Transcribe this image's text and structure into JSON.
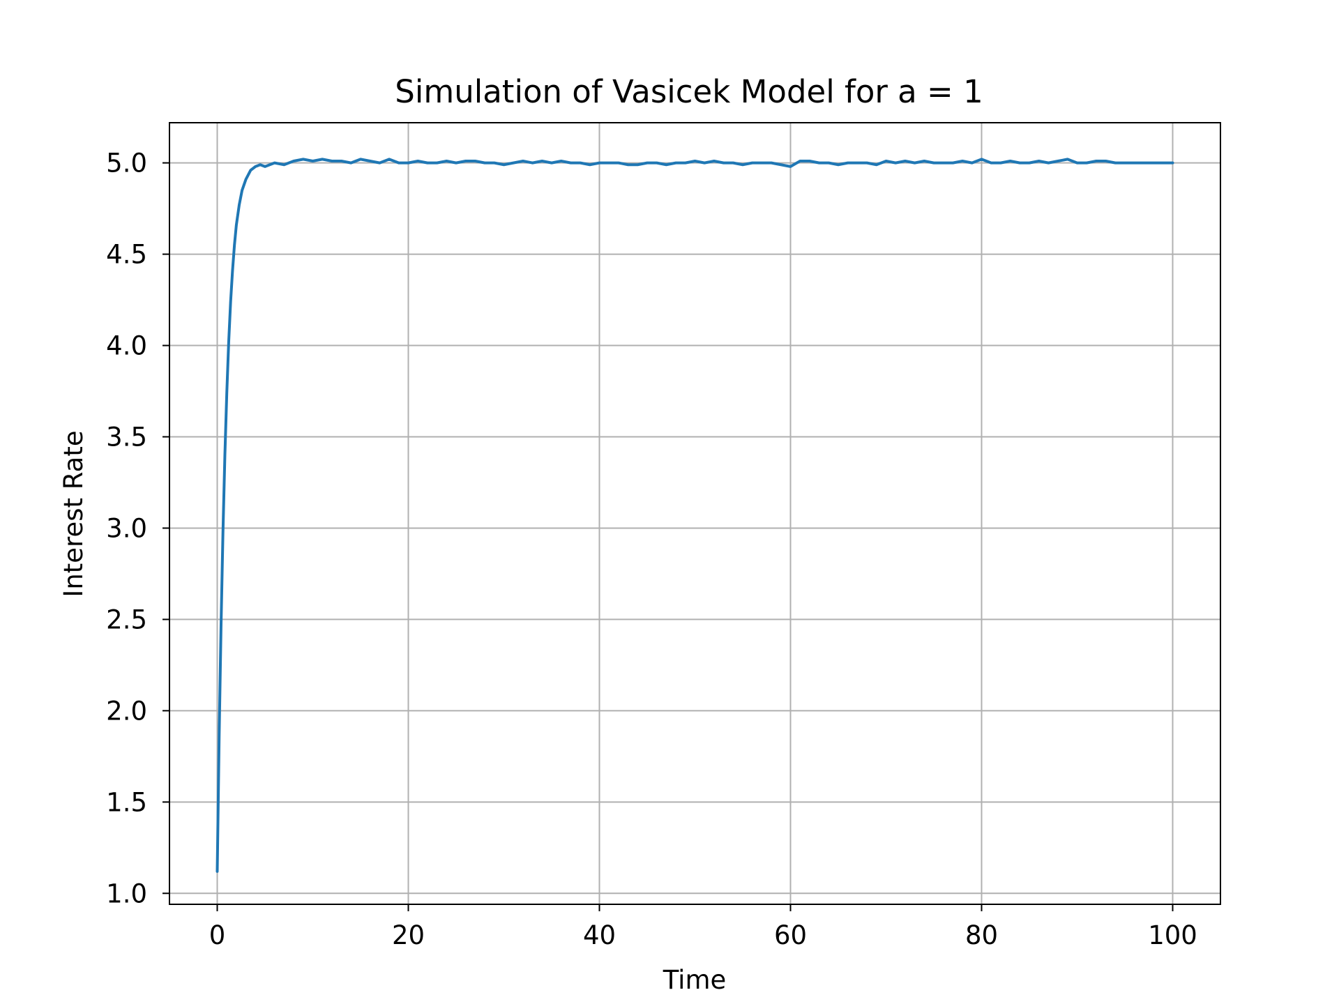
{
  "chart_data": {
    "type": "line",
    "title": "Simulation of Vasicek Model for a = 1",
    "xlabel": "Time",
    "ylabel": "Interest Rate",
    "xlim": [
      -5,
      105
    ],
    "ylim": [
      0.94,
      5.22
    ],
    "grid": true,
    "x_ticks": [
      0,
      20,
      40,
      60,
      80,
      100
    ],
    "y_ticks": [
      1.0,
      1.5,
      2.0,
      2.5,
      3.0,
      3.5,
      4.0,
      4.5,
      5.0
    ],
    "x_tick_labels": [
      "0",
      "20",
      "40",
      "60",
      "80",
      "100"
    ],
    "y_tick_labels": [
      "1.0",
      "1.5",
      "2.0",
      "2.5",
      "3.0",
      "3.5",
      "4.0",
      "4.5",
      "5.0"
    ],
    "series": [
      {
        "color": "#1f77b4",
        "x": [
          0,
          0.2,
          0.4,
          0.6,
          0.8,
          1,
          1.2,
          1.4,
          1.6,
          1.8,
          2,
          2.3,
          2.6,
          3,
          3.5,
          4,
          4.5,
          5,
          6,
          7,
          8,
          9,
          10,
          11,
          12,
          13,
          14,
          15,
          16,
          17,
          18,
          19,
          20,
          21,
          22,
          23,
          24,
          25,
          26,
          27,
          28,
          29,
          30,
          31,
          32,
          33,
          34,
          35,
          36,
          37,
          38,
          39,
          40,
          41,
          42,
          43,
          44,
          45,
          46,
          47,
          48,
          49,
          50,
          51,
          52,
          53,
          54,
          55,
          56,
          57,
          58,
          59,
          60,
          61,
          62,
          63,
          64,
          65,
          66,
          67,
          68,
          69,
          70,
          71,
          72,
          73,
          74,
          75,
          76,
          77,
          78,
          79,
          80,
          81,
          82,
          83,
          84,
          85,
          86,
          87,
          88,
          89,
          90,
          91,
          92,
          93,
          94,
          95,
          96,
          97,
          98,
          99,
          100
        ],
        "y": [
          1.12,
          1.86,
          2.47,
          2.98,
          3.4,
          3.74,
          4.02,
          4.24,
          4.41,
          4.55,
          4.66,
          4.77,
          4.85,
          4.91,
          4.96,
          4.98,
          4.99,
          4.98,
          5.0,
          4.99,
          5.01,
          5.02,
          5.01,
          5.02,
          5.01,
          5.01,
          5.0,
          5.02,
          5.01,
          5.0,
          5.02,
          5.0,
          5.0,
          5.01,
          5.0,
          5.0,
          5.01,
          5.0,
          5.01,
          5.01,
          5.0,
          5.0,
          4.99,
          5.0,
          5.01,
          5.0,
          5.01,
          5.0,
          5.01,
          5.0,
          5.0,
          4.99,
          5.0,
          5.0,
          5.0,
          4.99,
          4.99,
          5.0,
          5.0,
          4.99,
          5.0,
          5.0,
          5.01,
          5.0,
          5.01,
          5.0,
          5.0,
          4.99,
          5.0,
          5.0,
          5.0,
          4.99,
          4.98,
          5.01,
          5.01,
          5.0,
          5.0,
          4.99,
          5.0,
          5.0,
          5.0,
          4.99,
          5.01,
          5.0,
          5.01,
          5.0,
          5.01,
          5.0,
          5.0,
          5.0,
          5.01,
          5.0,
          5.02,
          5.0,
          5.0,
          5.01,
          5.0,
          5.0,
          5.01,
          5.0,
          5.01,
          5.02,
          5.0,
          5.0,
          5.01,
          5.01,
          5.0,
          5.0,
          5.0,
          5.0,
          5.0,
          5.0,
          5.0
        ]
      }
    ]
  }
}
